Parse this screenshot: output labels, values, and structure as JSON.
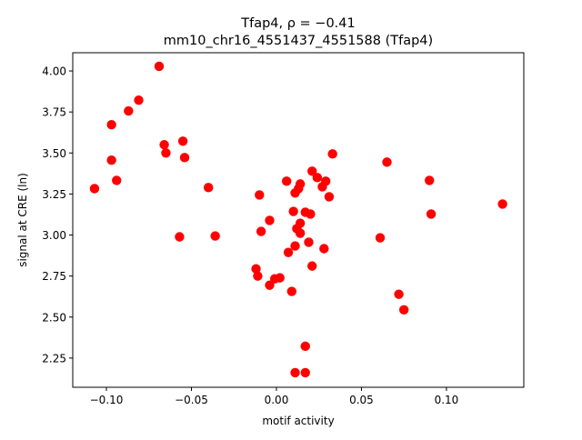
{
  "chart_data": {
    "type": "scatter",
    "title_line1": "Tfap4, ρ = −0.41",
    "title_line2": "mm10_chr16_4551437_4551588 (Tfap4)",
    "xlabel": "motif activity",
    "ylabel": "signal at CRE (ln)",
    "xlim": [
      -0.1198,
      0.1455
    ],
    "ylim": [
      2.072,
      4.111
    ],
    "xticks": [
      -0.1,
      -0.05,
      0.0,
      0.05,
      0.1
    ],
    "xtick_labels": [
      "−0.10",
      "−0.05",
      "0.00",
      "0.05",
      "0.10"
    ],
    "yticks": [
      2.25,
      2.5,
      2.75,
      3.0,
      3.25,
      3.5,
      3.75,
      4.0
    ],
    "ytick_labels": [
      "2.25",
      "2.50",
      "2.75",
      "3.00",
      "3.25",
      "3.50",
      "3.75",
      "4.00"
    ],
    "grid": false,
    "point_color": "#ff0000",
    "points": [
      [
        -0.069,
        4.028
      ],
      [
        -0.081,
        3.822
      ],
      [
        -0.087,
        3.756
      ],
      [
        -0.097,
        3.672
      ],
      [
        -0.066,
        3.55
      ],
      [
        -0.055,
        3.572
      ],
      [
        -0.065,
        3.5
      ],
      [
        -0.054,
        3.472
      ],
      [
        -0.097,
        3.456
      ],
      [
        -0.094,
        3.333
      ],
      [
        -0.107,
        3.283
      ],
      [
        -0.04,
        3.289
      ],
      [
        -0.057,
        2.989
      ],
      [
        -0.036,
        2.994
      ],
      [
        -0.01,
        3.244
      ],
      [
        -0.004,
        3.089
      ],
      [
        -0.009,
        3.022
      ],
      [
        -0.012,
        2.794
      ],
      [
        -0.011,
        2.75
      ],
      [
        -0.004,
        2.694
      ],
      [
        -0.001,
        2.733
      ],
      [
        0.002,
        2.739
      ],
      [
        0.009,
        2.656
      ],
      [
        0.006,
        3.328
      ],
      [
        0.014,
        3.311
      ],
      [
        0.011,
        3.256
      ],
      [
        0.013,
        3.283
      ],
      [
        0.021,
        3.389
      ],
      [
        0.024,
        3.35
      ],
      [
        0.029,
        3.328
      ],
      [
        0.027,
        3.294
      ],
      [
        0.031,
        3.233
      ],
      [
        0.033,
        3.494
      ],
      [
        0.01,
        3.144
      ],
      [
        0.017,
        3.139
      ],
      [
        0.02,
        3.128
      ],
      [
        0.014,
        3.072
      ],
      [
        0.012,
        3.039
      ],
      [
        0.014,
        3.011
      ],
      [
        0.007,
        2.894
      ],
      [
        0.011,
        2.933
      ],
      [
        0.019,
        2.956
      ],
      [
        0.028,
        2.917
      ],
      [
        0.021,
        2.811
      ],
      [
        0.017,
        2.322
      ],
      [
        0.011,
        2.161
      ],
      [
        0.017,
        2.161
      ],
      [
        0.065,
        3.444
      ],
      [
        0.061,
        2.983
      ],
      [
        0.09,
        3.333
      ],
      [
        0.091,
        3.128
      ],
      [
        0.072,
        2.639
      ],
      [
        0.075,
        2.544
      ],
      [
        0.133,
        3.189
      ]
    ]
  }
}
